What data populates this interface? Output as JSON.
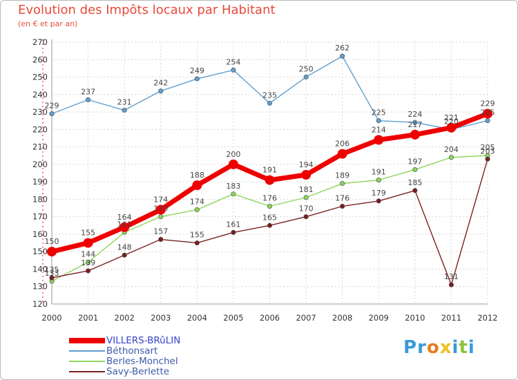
{
  "title": "Evolution des Impôts locaux par Habitant",
  "subtitle": "(en € et par an)",
  "logo": [
    "P",
    "r",
    "o",
    "x",
    "i",
    "t",
    "i"
  ],
  "logo_colors": [
    "#3a9ad9",
    "#3a9ad9",
    "#e87d1e",
    "#f0c020",
    "#3a9ad9",
    "#8cc43c",
    "#3a9ad9"
  ],
  "chart_data": {
    "type": "line",
    "title": "Evolution des Impôts locaux par Habitant",
    "subtitle": "(en € et par an)",
    "xlabel": "",
    "ylabel": "",
    "ylim": [
      120,
      270
    ],
    "yticks": [
      120,
      130,
      140,
      150,
      160,
      170,
      180,
      190,
      200,
      210,
      220,
      230,
      240,
      250,
      260,
      270
    ],
    "categories": [
      "2000",
      "2001",
      "2002",
      "2003",
      "2004",
      "2005",
      "2006",
      "2007",
      "2008",
      "2009",
      "2010",
      "2011",
      "2012"
    ],
    "grid": true,
    "legend_position": "bottom-left",
    "series": [
      {
        "name": "VILLERS-BRûLIN",
        "color": "#ee0000",
        "values": [
          150,
          155,
          164,
          174,
          188,
          200,
          191,
          194,
          206,
          214,
          217,
          221,
          229
        ]
      },
      {
        "name": "Béthonsart",
        "color": "#5f9fcf",
        "values": [
          229,
          237,
          231,
          242,
          249,
          254,
          235,
          250,
          262,
          225,
          224,
          220,
          225
        ]
      },
      {
        "name": "Berles-Monchel",
        "color": "#8fd45a",
        "values": [
          133,
          144,
          161,
          170,
          174,
          183,
          176,
          181,
          189,
          191,
          197,
          204,
          205
        ]
      },
      {
        "name": "Savy-Berlette",
        "color": "#7a1f1f",
        "values": [
          135,
          139,
          148,
          157,
          155,
          161,
          165,
          170,
          176,
          179,
          185,
          131,
          203
        ]
      }
    ]
  }
}
